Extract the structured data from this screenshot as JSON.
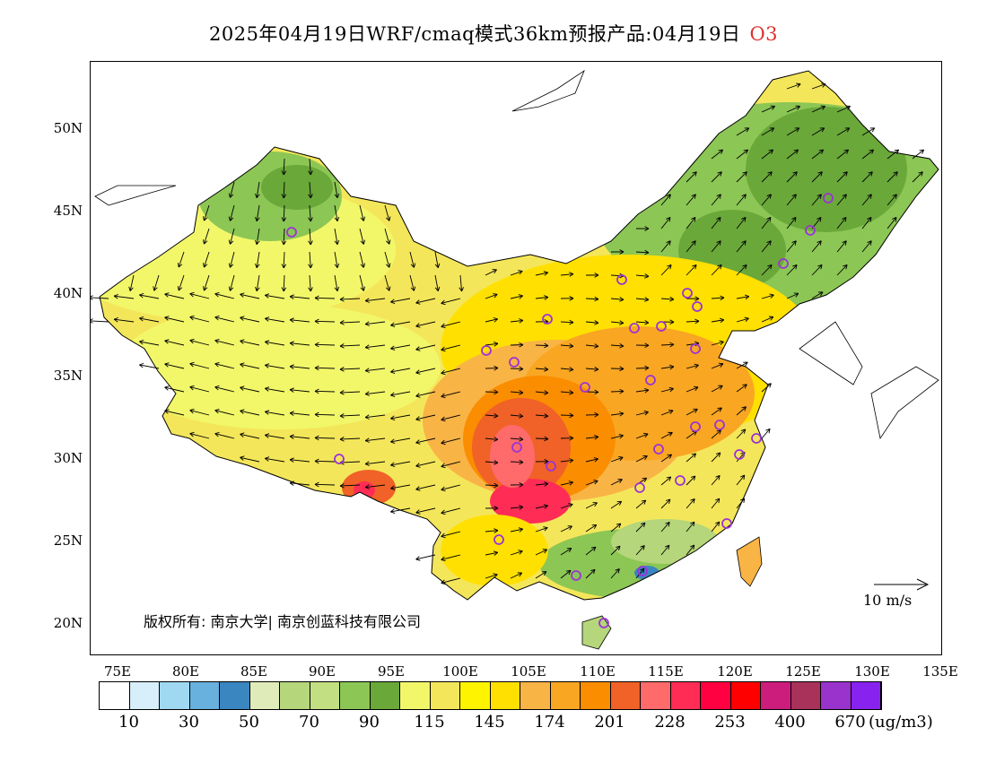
{
  "title": {
    "main": "2025年04月19日WRF/cmaq模式36km预报产品:04月19日",
    "species": "O3"
  },
  "map": {
    "lat_labels": [
      "50N",
      "45N",
      "40N",
      "35N",
      "30N",
      "25N",
      "20N"
    ],
    "lon_labels": [
      "75E",
      "80E",
      "85E",
      "90E",
      "95E",
      "100E",
      "105E",
      "110E",
      "115E",
      "120E",
      "125E",
      "130E",
      "135E"
    ],
    "copyright": "版权所有: 南京大学| 南京创蓝科技有限公司",
    "wind_reference": "10 m/s",
    "stations_marker": "circle-icon"
  },
  "colorbar": {
    "colors": [
      "#ffffff",
      "#d6effb",
      "#a0d8f2",
      "#68b0de",
      "#3a86c0",
      "#dfebb9",
      "#b5d67a",
      "#c2e082",
      "#8cc655",
      "#6aa83a",
      "#f2f76a",
      "#f4e65a",
      "#fff400",
      "#ffe000",
      "#f9b446",
      "#f9a623",
      "#fb8d00",
      "#f06227",
      "#ff6a6a",
      "#ff2d55",
      "#ff0040",
      "#ff0000",
      "#cc1c7c",
      "#a8325a",
      "#9933cc",
      "#8822ee"
    ],
    "labels": [
      "10",
      "30",
      "50",
      "70",
      "90",
      "115",
      "145",
      "174",
      "201",
      "228",
      "253",
      "400",
      "670"
    ],
    "unit": "(ug/m3)"
  }
}
